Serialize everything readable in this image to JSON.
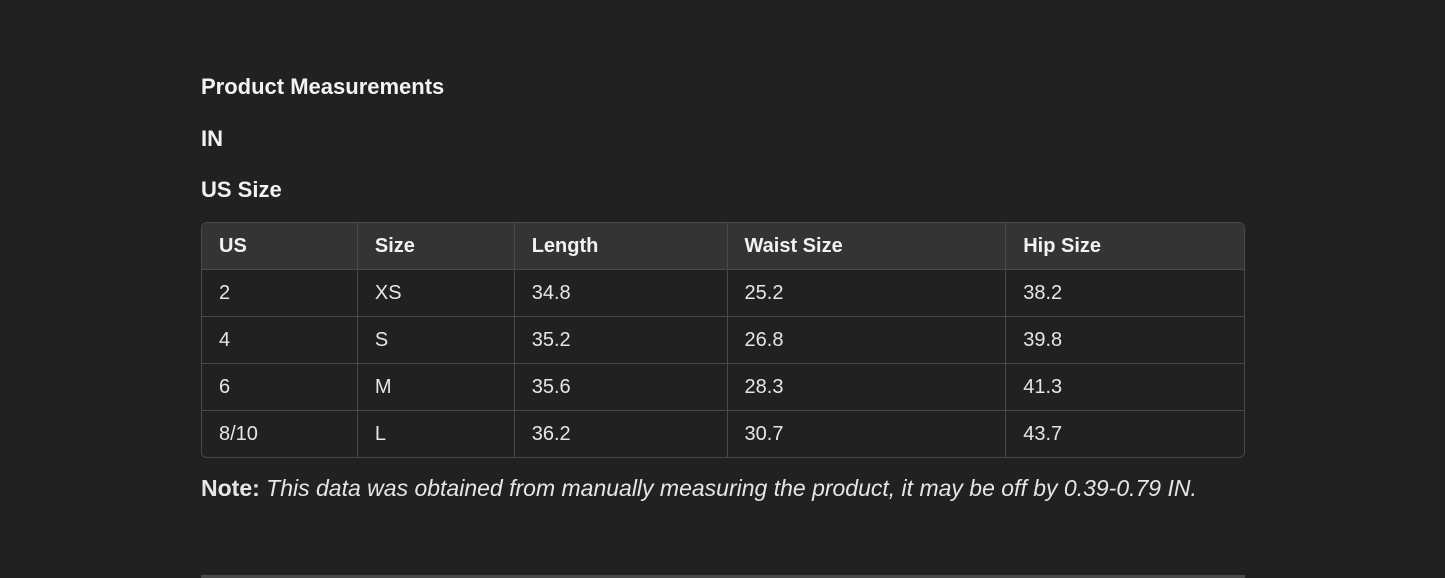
{
  "headings": {
    "title": "Product Measurements",
    "unit": "IN",
    "size_system": "US Size"
  },
  "table": {
    "columns": [
      "US",
      "Size",
      "Length",
      "Waist Size",
      "Hip Size"
    ],
    "rows": [
      [
        "2",
        "XS",
        "34.8",
        "25.2",
        "38.2"
      ],
      [
        "4",
        "S",
        "35.2",
        "26.8",
        "39.8"
      ],
      [
        "6",
        "M",
        "35.6",
        "28.3",
        "41.3"
      ],
      [
        "8/10",
        "L",
        "36.2",
        "30.7",
        "43.7"
      ]
    ]
  },
  "note": {
    "label": "Note:",
    "text": "This data was obtained from manually measuring the product, it may be off by 0.39-0.79 IN."
  }
}
